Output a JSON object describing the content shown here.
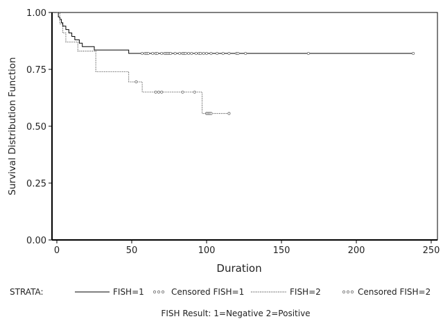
{
  "chart_data": {
    "type": "line",
    "subtype": "kaplan-meier",
    "title": "",
    "xlabel": "Duration",
    "ylabel": "Survival Distribution Function",
    "xlim": [
      0,
      250
    ],
    "ylim": [
      0,
      1
    ],
    "x_ticks": [
      "0",
      "50",
      "100",
      "150",
      "200",
      "250"
    ],
    "y_ticks": [
      "0.00",
      "0.25",
      "0.50",
      "0.75",
      "1.00"
    ],
    "grid": false,
    "legend": {
      "placement": "bottom",
      "title": "STRATA:",
      "entries": [
        "FISH=1",
        "Censored FISH=1",
        "FISH=2",
        "Censored FISH=2"
      ]
    },
    "footnote": "FISH Result: 1=Negative 2=Positive",
    "series": [
      {
        "name": "FISH=1",
        "line_style": "solid",
        "steps": [
          [
            0,
            1.0
          ],
          [
            1,
            0.98
          ],
          [
            2,
            0.97
          ],
          [
            3,
            0.955
          ],
          [
            4,
            0.94
          ],
          [
            6,
            0.925
          ],
          [
            8,
            0.91
          ],
          [
            10,
            0.895
          ],
          [
            12,
            0.88
          ],
          [
            15,
            0.865
          ],
          [
            17,
            0.85
          ],
          [
            25,
            0.835
          ],
          [
            48,
            0.82
          ],
          [
            238,
            0.82
          ]
        ],
        "censored": [
          57,
          59,
          60,
          61,
          64,
          66,
          67,
          70,
          72,
          73,
          74,
          75,
          76,
          79,
          82,
          84,
          85,
          86,
          88,
          90,
          93,
          95,
          96,
          98,
          100,
          103,
          107,
          111,
          115,
          120,
          121,
          126,
          168,
          238
        ]
      },
      {
        "name": "FISH=2",
        "line_style": "dotted",
        "steps": [
          [
            0,
            1.0
          ],
          [
            2,
            0.95
          ],
          [
            4,
            0.91
          ],
          [
            6,
            0.87
          ],
          [
            14,
            0.83
          ],
          [
            26,
            0.74
          ],
          [
            48,
            0.695
          ],
          [
            57,
            0.65
          ],
          [
            97,
            0.556
          ],
          [
            115,
            0.556
          ]
        ],
        "censored": [
          53,
          66,
          68,
          70,
          84,
          92,
          100,
          101,
          102,
          103,
          115
        ]
      }
    ]
  }
}
